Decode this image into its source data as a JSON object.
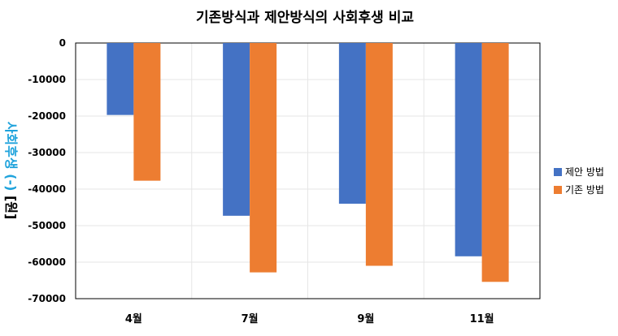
{
  "chart_data": {
    "type": "bar",
    "title": "기존방식과 제안방식의 사회후생 비교",
    "ylabel_main": "사회후생 (-)",
    "ylabel_unit": " [원]",
    "categories": [
      "4월",
      "7월",
      "9월",
      "11월"
    ],
    "series": [
      {
        "name": "제안 방법",
        "color": "#4472c4",
        "values": [
          -19700,
          -47300,
          -44000,
          -58400
        ]
      },
      {
        "name": "기존 방법",
        "color": "#ed7d31",
        "values": [
          -37700,
          -62800,
          -61000,
          -65400
        ]
      }
    ],
    "ylim": [
      -70000,
      0
    ],
    "yticks": [
      0,
      -10000,
      -20000,
      -30000,
      -40000,
      -50000,
      -60000,
      -70000
    ],
    "grid": true,
    "legend": "right"
  }
}
